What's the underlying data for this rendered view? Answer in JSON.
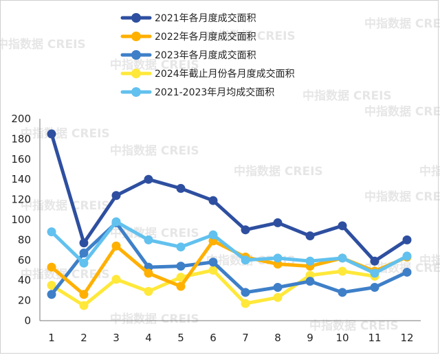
{
  "chart_data": {
    "type": "line",
    "x": [
      1,
      2,
      3,
      4,
      5,
      6,
      7,
      8,
      9,
      10,
      11,
      12
    ],
    "ylim": [
      0,
      200
    ],
    "yticks": [
      0,
      20,
      40,
      60,
      80,
      100,
      120,
      140,
      160,
      180,
      200
    ],
    "grid": false,
    "legend_position": "top-center",
    "watermark": "中指数据 CREIS",
    "series": [
      {
        "name": "2021年各月度成交面积",
        "color": "#2E4FA0",
        "values": [
          185,
          77,
          124,
          140,
          131,
          119,
          90,
          97,
          84,
          94,
          59,
          80
        ]
      },
      {
        "name": "2022年各月度成交面积",
        "color": "#FFB000",
        "values": [
          53,
          26,
          74,
          47,
          34,
          79,
          63,
          56,
          54,
          62,
          49,
          63
        ]
      },
      {
        "name": "2023年各月度成交面积",
        "color": "#3E7FC8",
        "values": [
          26,
          67,
          97,
          53,
          54,
          58,
          28,
          33,
          39,
          28,
          33,
          48
        ]
      },
      {
        "name": "2024年截止月份各月度成交面积",
        "color": "#FFE83A",
        "values": [
          35,
          15,
          41,
          29,
          43,
          50,
          17,
          23,
          45,
          49,
          44,
          null
        ]
      },
      {
        "name": "2021-2023年月均成交面积",
        "color": "#62C1EE",
        "values": [
          88,
          57,
          98,
          80,
          73,
          85,
          60,
          62,
          59,
          62,
          47,
          64
        ]
      }
    ]
  }
}
